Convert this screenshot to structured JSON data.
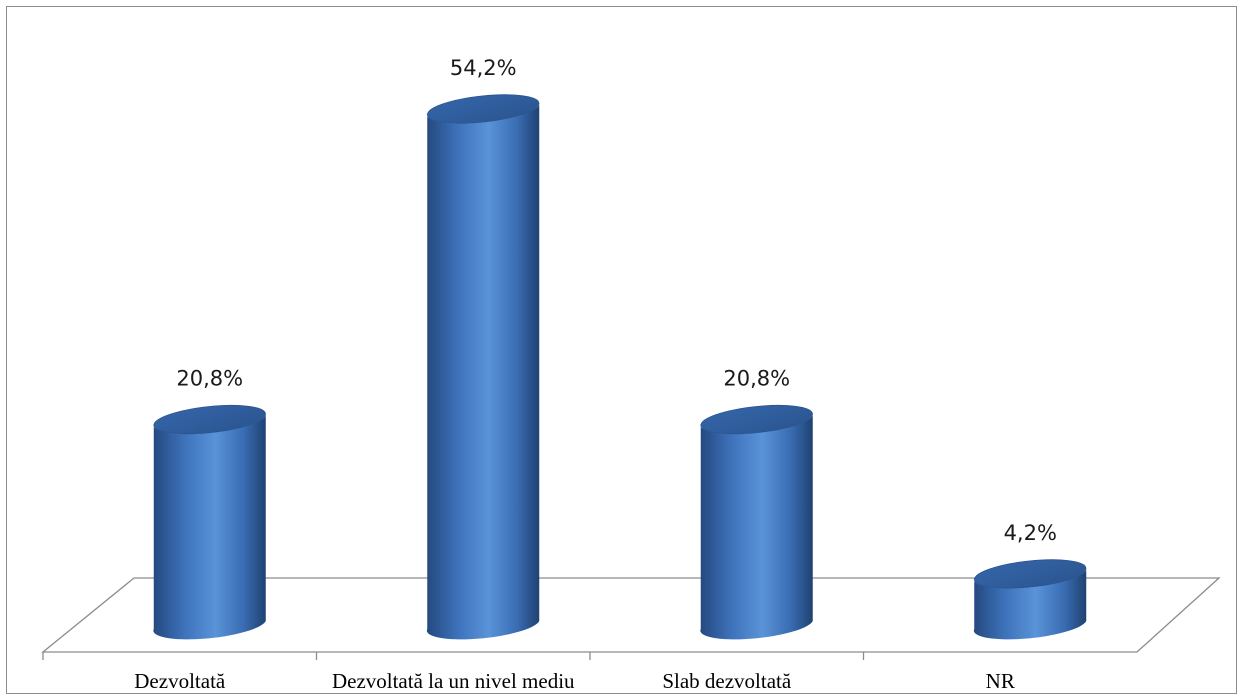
{
  "chart_data": {
    "type": "bar",
    "categories": [
      "Dezvoltată",
      "Dezvoltată la un nivel mediu",
      "Slab dezvoltată",
      "NR"
    ],
    "values": [
      20.8,
      54.2,
      20.8,
      4.2
    ],
    "value_labels": [
      "20,8%",
      "54,2%",
      "20,8%",
      "4,2%"
    ],
    "ylim": [
      0,
      60
    ],
    "grid": false,
    "legend": "none",
    "bar_color": "#3d74bd"
  }
}
